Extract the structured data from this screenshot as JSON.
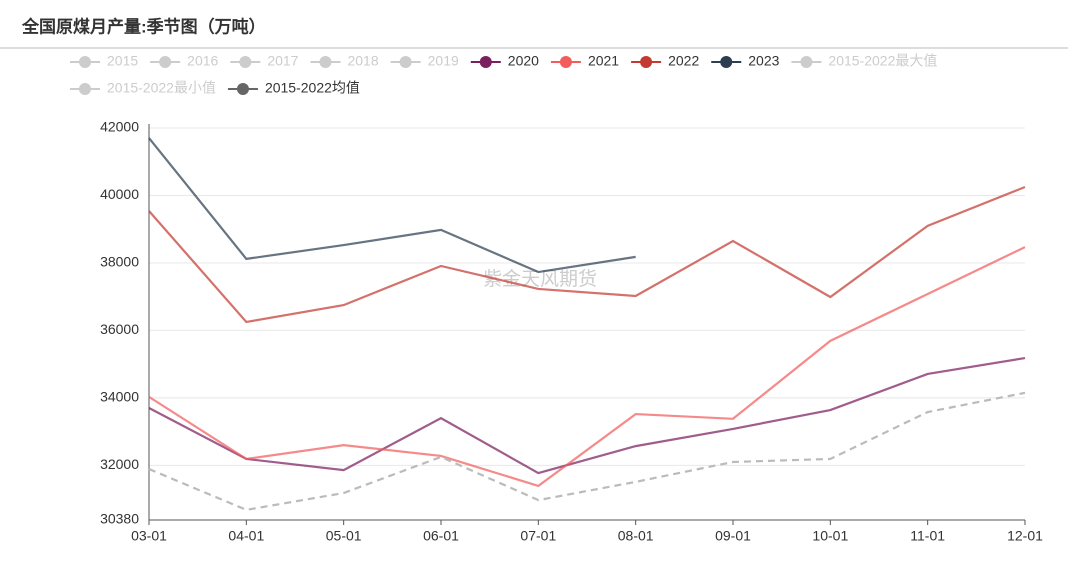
{
  "chart_data": {
    "type": "line",
    "title": "全国原煤月产量:季节图（万吨）",
    "annotation": "紫金天风期货",
    "categories": [
      "03-01",
      "04-01",
      "05-01",
      "06-01",
      "07-01",
      "08-01",
      "09-01",
      "10-01",
      "11-01",
      "12-01"
    ],
    "ylim": [
      30380,
      42000
    ],
    "yticks": [
      30380,
      32000,
      34000,
      36000,
      38000,
      40000,
      42000
    ],
    "grid": true,
    "series": [
      {
        "name": "2015",
        "visible": false,
        "color": "#cccccc",
        "values": [
          null,
          null,
          null,
          null,
          null,
          null,
          null,
          null,
          null,
          null
        ]
      },
      {
        "name": "2016",
        "visible": false,
        "color": "#cccccc",
        "values": [
          null,
          null,
          null,
          null,
          null,
          null,
          null,
          null,
          null,
          null
        ]
      },
      {
        "name": "2017",
        "visible": false,
        "color": "#cccccc",
        "values": [
          null,
          null,
          null,
          null,
          null,
          null,
          null,
          null,
          null,
          null
        ]
      },
      {
        "name": "2018",
        "visible": false,
        "color": "#cccccc",
        "values": [
          null,
          null,
          null,
          null,
          null,
          null,
          null,
          null,
          null,
          null
        ]
      },
      {
        "name": "2019",
        "visible": false,
        "color": "#cccccc",
        "values": [
          null,
          null,
          null,
          null,
          null,
          null,
          null,
          null,
          null,
          null
        ]
      },
      {
        "name": "2020",
        "visible": true,
        "color": "#7b1f5e",
        "values": [
          33700,
          32190,
          31860,
          33400,
          31770,
          32570,
          33080,
          33640,
          34710,
          35180
        ]
      },
      {
        "name": "2021",
        "visible": true,
        "color": "#f25c5c",
        "values": [
          34030,
          32190,
          32600,
          32280,
          31390,
          33520,
          33380,
          35690,
          37080,
          38470
        ]
      },
      {
        "name": "2022",
        "visible": true,
        "color": "#c23a31",
        "values": [
          39540,
          36250,
          36750,
          37910,
          37230,
          37020,
          38650,
          36990,
          39100,
          40250
        ]
      },
      {
        "name": "2023",
        "visible": true,
        "color": "#2c3e50",
        "values": [
          41700,
          38120,
          38530,
          38980,
          37730,
          38180,
          null,
          null,
          null,
          null
        ]
      },
      {
        "name": "2015-2022最大值",
        "visible": false,
        "color": "#cccccc",
        "values": [
          null,
          null,
          null,
          null,
          null,
          null,
          null,
          null,
          null,
          null
        ]
      },
      {
        "name": "2015-2022最小值",
        "visible": false,
        "color": "#cccccc",
        "values": [
          null,
          null,
          null,
          null,
          null,
          null,
          null,
          null,
          null,
          null
        ]
      },
      {
        "name": "2015-2022均值",
        "visible": true,
        "dashed": true,
        "color": "#666666",
        "values": [
          31890,
          30680,
          31180,
          32250,
          30970,
          31510,
          32100,
          32190,
          33580,
          34150
        ]
      }
    ]
  }
}
